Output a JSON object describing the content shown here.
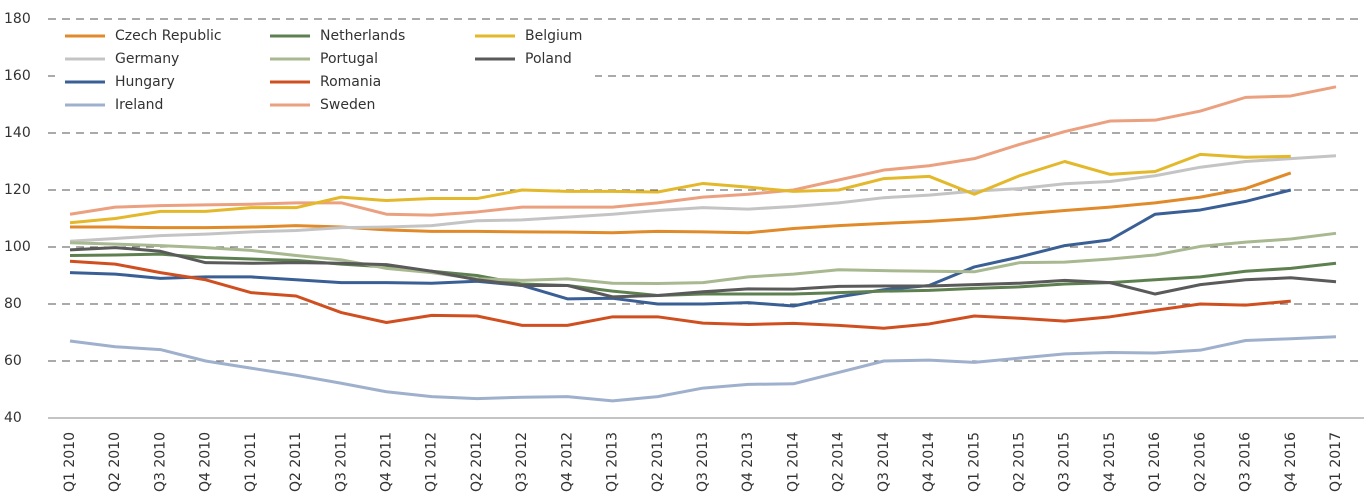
{
  "chart_data": {
    "type": "line",
    "categories": [
      "Q1 2010",
      "Q2 2010",
      "Q3 2010",
      "Q4 2010",
      "Q1 2011",
      "Q2 2011",
      "Q3 2011",
      "Q4 2011",
      "Q1 2012",
      "Q2 2012",
      "Q3 2012",
      "Q4 2012",
      "Q1 2013",
      "Q2 2013",
      "Q3 2013",
      "Q4 2013",
      "Q1 2014",
      "Q2 2014",
      "Q3 2014",
      "Q4 2014",
      "Q1 2015",
      "Q2 2015",
      "Q3 2015",
      "Q4 2015",
      "Q1 2016",
      "Q2 2016",
      "Q3 2016",
      "Q4 2016",
      "Q1 2017"
    ],
    "ylim": [
      40,
      180
    ],
    "yticks": [
      40,
      60,
      80,
      100,
      120,
      140,
      160,
      180
    ],
    "grid": true,
    "legend": "upper left",
    "series": [
      {
        "name": "Czech Republic",
        "color": "#e08a2a",
        "values": [
          107,
          107,
          106.8,
          106.8,
          107,
          107.5,
          107,
          106,
          105.5,
          105.5,
          105.3,
          105.2,
          105,
          105.5,
          105.3,
          105,
          106.5,
          107.5,
          108.3,
          109,
          110,
          111.5,
          112.8,
          114,
          115.5,
          117.5,
          120.5,
          126,
          null
        ]
      },
      {
        "name": "Germany",
        "color": "#c4c4c4",
        "values": [
          102,
          103,
          104,
          104.5,
          105.3,
          105.8,
          106.8,
          107,
          107.5,
          109.2,
          109.5,
          110.5,
          111.5,
          112.8,
          113.8,
          113.3,
          114.2,
          115.5,
          117.3,
          118.2,
          119.6,
          120.5,
          122.2,
          123,
          125,
          128,
          130,
          131,
          132
        ]
      },
      {
        "name": "Hungary",
        "color": "#3a5f95",
        "values": [
          91,
          90.5,
          89,
          89.5,
          89.5,
          88.5,
          87.5,
          87.5,
          87.3,
          88,
          86.5,
          81.8,
          82,
          80,
          80,
          80.5,
          79.3,
          82.5,
          85,
          86.5,
          93,
          96.5,
          100.5,
          102.5,
          111.5,
          113,
          116,
          120,
          null
        ]
      },
      {
        "name": "Ireland",
        "color": "#9fb0cc",
        "values": [
          67,
          65,
          64,
          60,
          57.5,
          55,
          52.2,
          49.2,
          47.5,
          46.8,
          47.3,
          47.5,
          46,
          47.5,
          50.5,
          51.8,
          52,
          56,
          60,
          60.3,
          59.5,
          61,
          62.5,
          63,
          62.8,
          63.8,
          67.2,
          67.8,
          68.5
        ]
      },
      {
        "name": "Netherlands",
        "color": "#5e8050",
        "values": [
          97,
          97.2,
          97.5,
          96.3,
          95.8,
          95.3,
          94,
          93,
          91.5,
          90,
          87,
          86.5,
          84.5,
          83,
          83.5,
          83.5,
          83.5,
          84,
          84.5,
          84.8,
          85.5,
          86,
          87,
          87.5,
          88.5,
          89.5,
          91.5,
          92.5,
          94.3
        ]
      },
      {
        "name": "Portugal",
        "color": "#a8b890",
        "values": [
          101.5,
          101,
          100.5,
          99.8,
          98.8,
          97,
          95.5,
          92.5,
          91,
          88.8,
          88.3,
          88.8,
          87.3,
          87.2,
          87.5,
          89.5,
          90.5,
          92,
          91.7,
          91.5,
          91.3,
          94.5,
          94.7,
          95.8,
          97.2,
          100.2,
          101.7,
          102.8,
          104.8
        ]
      },
      {
        "name": "Romania",
        "color": "#d04f20",
        "values": [
          95,
          94,
          91,
          88.5,
          84,
          82.8,
          77,
          73.5,
          76,
          75.8,
          72.5,
          72.5,
          75.5,
          75.5,
          73.3,
          72.8,
          73.2,
          72.5,
          71.5,
          73,
          75.8,
          75,
          74,
          75.5,
          77.8,
          80,
          79.6,
          81,
          null
        ]
      },
      {
        "name": "Sweden",
        "color": "#eba07f",
        "values": [
          111.5,
          114,
          114.5,
          114.8,
          115,
          115.5,
          115.5,
          111.5,
          111.2,
          112.3,
          114,
          114,
          114,
          115.5,
          117.5,
          118.5,
          120,
          123.5,
          127,
          128.5,
          131,
          136,
          140.5,
          144.2,
          144.5,
          147.7,
          152.5,
          153,
          156.2
        ]
      },
      {
        "name": "Belgium",
        "color": "#e3b82a",
        "values": [
          108.5,
          110,
          112.5,
          112.5,
          113.8,
          113.8,
          117.5,
          116.3,
          117,
          117,
          120,
          119.5,
          119.5,
          119.3,
          122.3,
          121,
          119.5,
          120,
          124,
          124.8,
          118.5,
          125,
          130,
          125.5,
          126.5,
          132.5,
          131.5,
          131.8,
          null
        ]
      },
      {
        "name": "Poland",
        "color": "#5a5a5a",
        "values": [
          99,
          99.8,
          98.5,
          94.5,
          94.3,
          94.5,
          94.3,
          93.8,
          91.5,
          88.5,
          86.5,
          86.5,
          82.5,
          83,
          84.3,
          85.3,
          85.2,
          86.2,
          86.3,
          86.3,
          86.8,
          87.3,
          88.3,
          87.5,
          83.5,
          86.8,
          88.5,
          89.2,
          87.8
        ]
      }
    ]
  }
}
